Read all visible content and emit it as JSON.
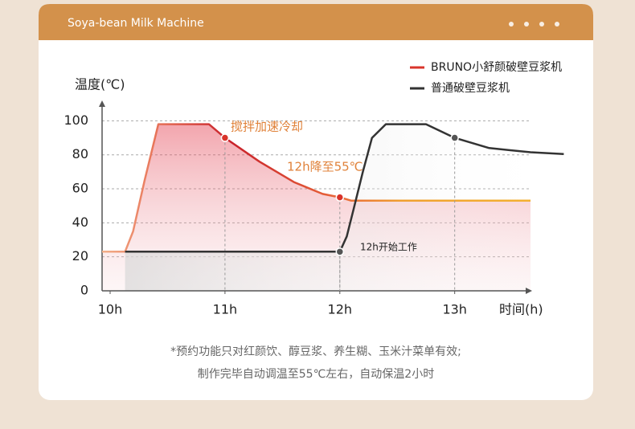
{
  "header": {
    "title": "Soya-bean Milk Machine"
  },
  "chart_data": {
    "type": "line",
    "ylabel": "温度(℃)",
    "xlabel": "时间(h)",
    "xlim": [
      9.93,
      13.66
    ],
    "ylim": [
      0,
      112
    ],
    "xticks": [
      {
        "value": 10,
        "label": "10h"
      },
      {
        "value": 11,
        "label": "11h"
      },
      {
        "value": 12,
        "label": "12h"
      },
      {
        "value": 13,
        "label": "13h"
      }
    ],
    "yticks": [
      0,
      20,
      40,
      60,
      80,
      100
    ],
    "grid": true,
    "legend": "top-right",
    "series": [
      {
        "name": "BRUNO小舒颜破壁豆浆机",
        "color": "#d9342b",
        "x": [
          9.93,
          10.13,
          10.2,
          10.3,
          10.42,
          10.86,
          11,
          11.3,
          11.6,
          11.85,
          12,
          12.1,
          12.3,
          13.66
        ],
        "values": [
          23,
          23,
          35,
          65,
          98,
          98,
          90,
          76,
          64,
          57,
          55,
          53,
          53,
          53
        ]
      },
      {
        "name": "普通破壁豆浆机",
        "color": "#333333",
        "x": [
          10.13,
          12,
          12.06,
          12.12,
          12.2,
          12.28,
          12.4,
          12.75,
          13,
          13.3,
          13.66,
          13.95
        ],
        "values": [
          23,
          23,
          32,
          48,
          70,
          90,
          98,
          98,
          90,
          84,
          81.5,
          80.5
        ]
      }
    ],
    "annotations": [
      "搅拌加速冷却",
      "12h降至55℃",
      "12h开始工作"
    ]
  },
  "footnote": [
    "*预约功能只对红颜饮、醇豆浆、养生糊、玉米汁菜单有效;",
    "制作完毕自动调温至55℃左右，自动保温2小时"
  ]
}
